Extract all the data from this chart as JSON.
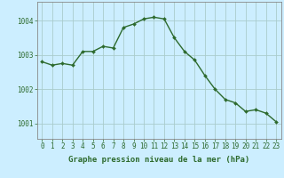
{
  "x": [
    0,
    1,
    2,
    3,
    4,
    5,
    6,
    7,
    8,
    9,
    10,
    11,
    12,
    13,
    14,
    15,
    16,
    17,
    18,
    19,
    20,
    21,
    22,
    23
  ],
  "y": [
    1002.8,
    1002.7,
    1002.75,
    1002.7,
    1003.1,
    1003.1,
    1003.25,
    1003.2,
    1003.8,
    1003.9,
    1004.05,
    1004.1,
    1004.05,
    1003.5,
    1003.1,
    1002.85,
    1002.4,
    1002.0,
    1001.7,
    1001.6,
    1001.35,
    1001.4,
    1001.3,
    1001.05
  ],
  "line_color": "#2d6a2d",
  "marker": "D",
  "marker_size": 2.0,
  "bg_color": "#cceeff",
  "grid_color": "#aacccc",
  "axis_color": "#2d6a2d",
  "xlabel": "Graphe pression niveau de la mer (hPa)",
  "xlabel_fontsize": 6.5,
  "ytick_labels": [
    "1001",
    "1002",
    "1003",
    "1004"
  ],
  "ytick_values": [
    1001,
    1002,
    1003,
    1004
  ],
  "ylim": [
    1000.55,
    1004.55
  ],
  "xlim": [
    -0.5,
    23.5
  ],
  "xtick_values": [
    0,
    1,
    2,
    3,
    4,
    5,
    6,
    7,
    8,
    9,
    10,
    11,
    12,
    13,
    14,
    15,
    16,
    17,
    18,
    19,
    20,
    21,
    22,
    23
  ],
  "tick_fontsize": 5.5,
  "line_width": 1.0
}
